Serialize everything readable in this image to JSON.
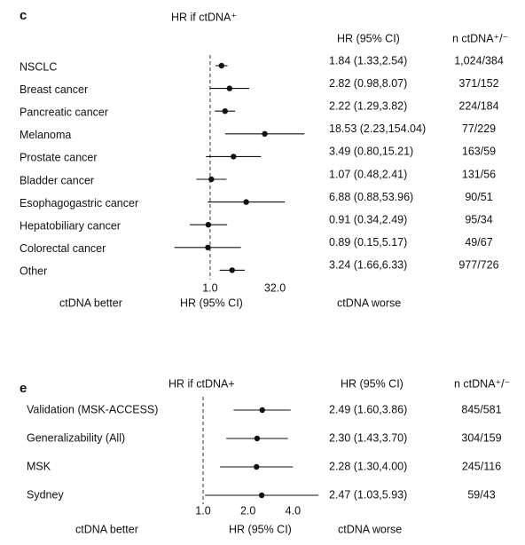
{
  "chart_data": [
    {
      "type": "forest",
      "panel_label": "c",
      "title": "HR if ctDNA⁺",
      "header_hr": "HR (95% CI)",
      "header_n": "n ctDNA⁺/⁻",
      "categories": [
        "NSCLC",
        "Breast cancer",
        "Pancreatic cancer",
        "Melanoma",
        "Prostate cancer",
        "Bladder cancer",
        "Esophagogastric cancer",
        "Hepatobiliary cancer",
        "Colorectal cancer",
        "Other"
      ],
      "values": [
        1.84,
        2.82,
        2.22,
        18.53,
        3.49,
        1.07,
        6.88,
        0.91,
        0.89,
        3.24
      ],
      "lower": [
        1.33,
        0.98,
        1.29,
        2.23,
        0.8,
        0.48,
        0.88,
        0.34,
        0.15,
        1.66
      ],
      "upper": [
        2.54,
        8.07,
        3.82,
        154.04,
        15.21,
        2.41,
        53.96,
        2.49,
        5.17,
        6.33
      ],
      "value_labels": [
        "1.84 (1.33,2.54)",
        "2.82 (0.98,8.07)",
        "2.22 (1.29,3.82)",
        "18.53 (2.23,154.04)",
        "3.49 (0.80,15.21)",
        "1.07 (0.48,2.41)",
        "6.88 (0.88,53.96)",
        "0.91 (0.34,2.49)",
        "0.89 (0.15,5.17)",
        "3.24 (1.66,6.33)"
      ],
      "n_labels": [
        "1,024/384",
        "371/152",
        "224/184",
        "77/229",
        "163/59",
        "131/56",
        "90/51",
        "95/34",
        "49/67",
        "977/726"
      ],
      "xlim": [
        0.125,
        256
      ],
      "xscale": "log",
      "reference": 1,
      "xticks": [
        {
          "value": 1,
          "label": "1.0"
        },
        {
          "value": 32,
          "label": "32.0"
        }
      ],
      "left_label": "ctDNA better",
      "xlabel": "HR (95% CI)",
      "right_label": "ctDNA worse"
    },
    {
      "type": "forest",
      "panel_label": "e",
      "title": "HR if ctDNA+",
      "header_hr": "HR (95% CI)",
      "header_n": "n ctDNA⁺/⁻",
      "categories": [
        "Validation (MSK-ACCESS)",
        "Generalizability (All)",
        "MSK",
        "Sydney"
      ],
      "values": [
        2.49,
        2.3,
        2.28,
        2.47
      ],
      "lower": [
        1.6,
        1.43,
        1.3,
        1.03
      ],
      "upper": [
        3.86,
        3.7,
        4.0,
        5.93
      ],
      "value_labels": [
        "2.49 (1.60,3.86)",
        "2.30 (1.43,3.70)",
        "2.28 (1.30,4.00)",
        "2.47 (1.03,5.93)"
      ],
      "n_labels": [
        "845/581",
        "304/159",
        "245/116",
        "59/43"
      ],
      "xlim": [
        1,
        6
      ],
      "xscale": "log",
      "reference": 1,
      "xticks": [
        {
          "value": 1,
          "label": "1.0"
        },
        {
          "value": 2,
          "label": "2.0"
        },
        {
          "value": 4,
          "label": "4.0"
        }
      ],
      "left_label": "ctDNA better",
      "xlabel": "HR (95% CI)",
      "right_label": "ctDNA worse"
    }
  ]
}
